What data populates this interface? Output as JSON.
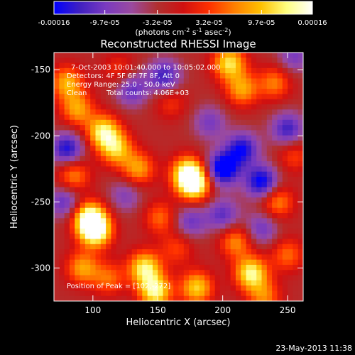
{
  "chart_data": {
    "type": "heatmap",
    "title": "Reconstructed RHESSI Image",
    "xlabel": "Heliocentric X (arcsec)",
    "ylabel": "Heliocentric Y (arcsec)",
    "xlim": [
      70,
      262
    ],
    "ylim": [
      -325,
      -137
    ],
    "x_ticks": [
      100,
      150,
      200,
      250
    ],
    "y_ticks": [
      -150,
      -200,
      -250,
      -300
    ],
    "colorbar": {
      "min": -0.00016,
      "max": 0.00016,
      "tick_values": [
        -0.00016,
        -9.7e-05,
        -3.2e-05,
        3.2e-05,
        9.7e-05,
        0.00016
      ],
      "tick_labels": [
        "-0.00016",
        "-9.7e-05",
        "-3.2e-05",
        "3.2e-05",
        "9.7e-05",
        "0.00016"
      ],
      "unit_text": "(photons cm",
      "unit_exp1": "-2",
      "unit_mid": " s",
      "unit_exp2": "-1",
      "unit_end": " asec",
      "unit_exp3": "-2",
      "unit_close": ")",
      "colors": [
        "#0000ff",
        "#4020c0",
        "#7a3ac0",
        "#9a4aa0",
        "#b03030",
        "#d01010",
        "#ff3000",
        "#ff8000",
        "#ffc000",
        "#ffff80",
        "#ffffff"
      ]
    },
    "annotations": [
      "7-Oct-2003 10:01:40.000 to 10:05:02.000",
      "Detectors: 4F 5F 6F 7F 8F, Att 0",
      "Energy Range: 25.0 - 50.0 keV",
      "Clean",
      "Total counts: 4.06E+03",
      "Position of Peak = [102,-272]"
    ],
    "peak": [
      102,
      -272
    ],
    "sources": [
      {
        "x": 102,
        "y": -272,
        "v": 1.0
      },
      {
        "x": 97,
        "y": -262,
        "v": 0.95
      },
      {
        "x": 178,
        "y": -237,
        "v": 0.95
      },
      {
        "x": 173,
        "y": -228,
        "v": 0.85
      },
      {
        "x": 108,
        "y": -197,
        "v": 0.85
      },
      {
        "x": 118,
        "y": -210,
        "v": 0.7
      },
      {
        "x": 135,
        "y": -225,
        "v": 0.6
      },
      {
        "x": 85,
        "y": -230,
        "v": 0.55
      },
      {
        "x": 80,
        "y": -160,
        "v": 0.65
      },
      {
        "x": 88,
        "y": -180,
        "v": 0.6
      },
      {
        "x": 140,
        "y": -300,
        "v": 0.85
      },
      {
        "x": 148,
        "y": -318,
        "v": 0.9
      },
      {
        "x": 180,
        "y": -315,
        "v": 0.75
      },
      {
        "x": 210,
        "y": -280,
        "v": 0.55
      },
      {
        "x": 222,
        "y": -304,
        "v": 0.9
      },
      {
        "x": 205,
        "y": -145,
        "v": 0.8
      },
      {
        "x": 215,
        "y": -165,
        "v": 0.6
      },
      {
        "x": 240,
        "y": -160,
        "v": 0.5
      },
      {
        "x": 242,
        "y": -250,
        "v": 0.55
      },
      {
        "x": 250,
        "y": -290,
        "v": 0.45
      },
      {
        "x": 232,
        "y": -322,
        "v": 0.5
      },
      {
        "x": 120,
        "y": -150,
        "v": 0.3
      },
      {
        "x": 160,
        "y": -175,
        "v": 0.3
      },
      {
        "x": 165,
        "y": -285,
        "v": 0.35
      },
      {
        "x": 112,
        "y": -308,
        "v": 0.45
      },
      {
        "x": 255,
        "y": -215,
        "v": 0.35
      },
      {
        "x": 92,
        "y": -300,
        "v": 0.6
      },
      {
        "x": 152,
        "y": -262,
        "v": 0.45
      },
      {
        "x": 200,
        "y": -225,
        "v": -0.9
      },
      {
        "x": 215,
        "y": -210,
        "v": -0.7
      },
      {
        "x": 230,
        "y": -235,
        "v": -0.8
      },
      {
        "x": 155,
        "y": -155,
        "v": -0.6
      },
      {
        "x": 80,
        "y": -210,
        "v": -0.7
      },
      {
        "x": 78,
        "y": -250,
        "v": -0.5
      },
      {
        "x": 250,
        "y": -195,
        "v": -0.6
      },
      {
        "x": 200,
        "y": -260,
        "v": -0.5
      },
      {
        "x": 255,
        "y": -140,
        "v": -0.4
      },
      {
        "x": 130,
        "y": -165,
        "v": -0.5
      },
      {
        "x": 125,
        "y": -245,
        "v": -0.35
      },
      {
        "x": 230,
        "y": -270,
        "v": -0.45
      },
      {
        "x": 190,
        "y": -190,
        "v": -0.4
      },
      {
        "x": 175,
        "y": -265,
        "v": -0.45
      }
    ]
  },
  "footer": {
    "date": "23-May-2013 11:38"
  }
}
